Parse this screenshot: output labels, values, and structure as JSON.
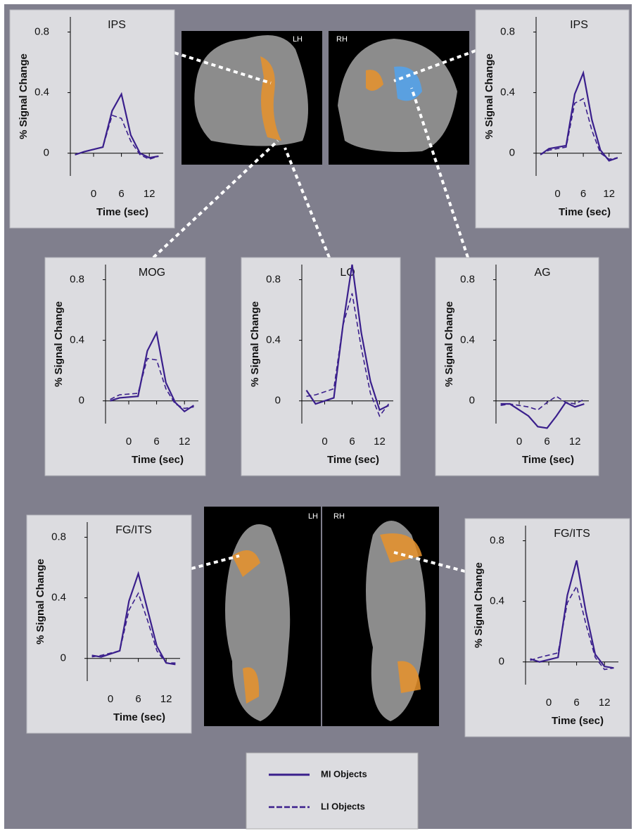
{
  "brain_labels": [
    "LH",
    "RH",
    "LH",
    "RH"
  ],
  "chart_data": [
    {
      "type": "line",
      "title": "IPS",
      "ylabel": "% Signal Change",
      "xlabel": "Time (sec)",
      "x": [
        -4,
        -2,
        2,
        4,
        6,
        8,
        10,
        12,
        14
      ],
      "xlim": [
        -5,
        15
      ],
      "xticks": [
        0,
        6,
        12
      ],
      "ylim": [
        -0.15,
        0.9
      ],
      "yticks": [
        0,
        0.4,
        0.8
      ],
      "series": [
        {
          "name": "MI Objects",
          "color": "#3a1f8c",
          "line_style": "solid",
          "values": [
            -0.01,
            0.01,
            0.04,
            0.28,
            0.39,
            0.12,
            0.0,
            -0.03,
            -0.02
          ]
        },
        {
          "name": "LI Objects",
          "color": "#3a1f8c",
          "line_style": "dashed",
          "values": [
            -0.01,
            0.01,
            0.04,
            0.25,
            0.23,
            0.08,
            -0.01,
            -0.04,
            -0.02
          ]
        }
      ]
    },
    {
      "type": "line",
      "title": "IPS",
      "ylabel": "% Signal Change",
      "xlabel": "Time (sec)",
      "x": [
        -4,
        -2,
        2,
        4,
        6,
        8,
        10,
        12,
        14
      ],
      "xlim": [
        -5,
        15
      ],
      "xticks": [
        0,
        6,
        12
      ],
      "ylim": [
        -0.15,
        0.9
      ],
      "yticks": [
        0,
        0.4,
        0.8
      ],
      "series": [
        {
          "name": "MI Objects",
          "color": "#3a1f8c",
          "line_style": "solid",
          "values": [
            -0.01,
            0.03,
            0.05,
            0.39,
            0.53,
            0.22,
            0.02,
            -0.05,
            -0.03
          ]
        },
        {
          "name": "LI Objects",
          "color": "#3a1f8c",
          "line_style": "dashed",
          "values": [
            -0.01,
            0.02,
            0.04,
            0.33,
            0.36,
            0.15,
            0.0,
            -0.04,
            -0.03
          ]
        }
      ]
    },
    {
      "type": "line",
      "title": "MOG",
      "ylabel": "% Signal Change",
      "xlabel": "Time (sec)",
      "x": [
        -4,
        -2,
        2,
        4,
        6,
        8,
        10,
        12,
        14
      ],
      "xlim": [
        -5,
        15
      ],
      "xticks": [
        0,
        6,
        12
      ],
      "ylim": [
        -0.15,
        0.9
      ],
      "yticks": [
        0,
        0.4,
        0.8
      ],
      "series": [
        {
          "name": "MI Objects",
          "color": "#3a1f8c",
          "line_style": "solid",
          "values": [
            0.0,
            0.02,
            0.03,
            0.33,
            0.45,
            0.12,
            -0.01,
            -0.07,
            -0.03
          ]
        },
        {
          "name": "LI Objects",
          "color": "#3a1f8c",
          "line_style": "dashed",
          "values": [
            0.01,
            0.04,
            0.05,
            0.28,
            0.27,
            0.08,
            -0.02,
            -0.05,
            -0.04
          ]
        }
      ]
    },
    {
      "type": "line",
      "title": "LO",
      "ylabel": "% Signal Change",
      "xlabel": "Time (sec)",
      "x": [
        -4,
        -2,
        2,
        4,
        6,
        8,
        10,
        12,
        14
      ],
      "xlim": [
        -5,
        15
      ],
      "xticks": [
        0,
        6,
        12
      ],
      "ylim": [
        -0.15,
        0.9
      ],
      "yticks": [
        0,
        0.4,
        0.8
      ],
      "series": [
        {
          "name": "MI Objects",
          "color": "#3a1f8c",
          "line_style": "solid",
          "values": [
            0.07,
            -0.02,
            0.02,
            0.5,
            0.9,
            0.45,
            0.13,
            -0.06,
            -0.03
          ]
        },
        {
          "name": "LI Objects",
          "color": "#3a1f8c",
          "line_style": "dashed",
          "values": [
            0.03,
            0.04,
            0.08,
            0.5,
            0.71,
            0.35,
            0.05,
            -0.1,
            -0.02
          ]
        }
      ]
    },
    {
      "type": "line",
      "title": "AG",
      "ylabel": "% Signal Change",
      "xlabel": "Time (sec)",
      "x": [
        -4,
        -2,
        2,
        4,
        6,
        8,
        10,
        12,
        14
      ],
      "xlim": [
        -5,
        15
      ],
      "xticks": [
        0,
        6,
        12
      ],
      "ylim": [
        -0.15,
        0.9
      ],
      "yticks": [
        0,
        0.4,
        0.8
      ],
      "series": [
        {
          "name": "MI Objects",
          "color": "#3a1f8c",
          "line_style": "solid",
          "values": [
            -0.02,
            -0.02,
            -0.1,
            -0.17,
            -0.18,
            -0.1,
            -0.01,
            -0.04,
            -0.02
          ]
        },
        {
          "name": "LI Objects",
          "color": "#3a1f8c",
          "line_style": "dashed",
          "values": [
            -0.03,
            -0.02,
            -0.04,
            -0.06,
            -0.01,
            0.03,
            -0.01,
            -0.02,
            0.01
          ]
        }
      ]
    },
    {
      "type": "line",
      "title": "FG/ITS",
      "ylabel": "% Signal Change",
      "xlabel": "Time (sec)",
      "x": [
        -4,
        -2,
        2,
        4,
        6,
        8,
        10,
        12,
        14
      ],
      "xlim": [
        -5,
        15
      ],
      "xticks": [
        0,
        6,
        12
      ],
      "ylim": [
        -0.15,
        0.9
      ],
      "yticks": [
        0,
        0.4,
        0.8
      ],
      "series": [
        {
          "name": "MI Objects",
          "color": "#3a1f8c",
          "line_style": "solid",
          "values": [
            0.02,
            0.01,
            0.05,
            0.38,
            0.56,
            0.32,
            0.08,
            -0.03,
            -0.04
          ]
        },
        {
          "name": "LI Objects",
          "color": "#3a1f8c",
          "line_style": "dashed",
          "values": [
            0.01,
            0.02,
            0.05,
            0.32,
            0.43,
            0.25,
            0.05,
            -0.03,
            -0.03
          ]
        }
      ]
    },
    {
      "type": "line",
      "title": "FG/ITS",
      "ylabel": "% Signal Change",
      "xlabel": "Time (sec)",
      "x": [
        -4,
        -2,
        2,
        4,
        6,
        8,
        10,
        12,
        14
      ],
      "xlim": [
        -5,
        15
      ],
      "xticks": [
        0,
        6,
        12
      ],
      "ylim": [
        -0.15,
        0.9
      ],
      "yticks": [
        0,
        0.4,
        0.8
      ],
      "series": [
        {
          "name": "MI Objects",
          "color": "#3a1f8c",
          "line_style": "solid",
          "values": [
            0.02,
            0.0,
            0.03,
            0.44,
            0.67,
            0.33,
            0.05,
            -0.03,
            -0.04
          ]
        },
        {
          "name": "LI Objects",
          "color": "#3a1f8c",
          "line_style": "dashed",
          "values": [
            0.01,
            0.03,
            0.06,
            0.39,
            0.5,
            0.25,
            0.03,
            -0.05,
            -0.04
          ]
        }
      ]
    }
  ]
}
